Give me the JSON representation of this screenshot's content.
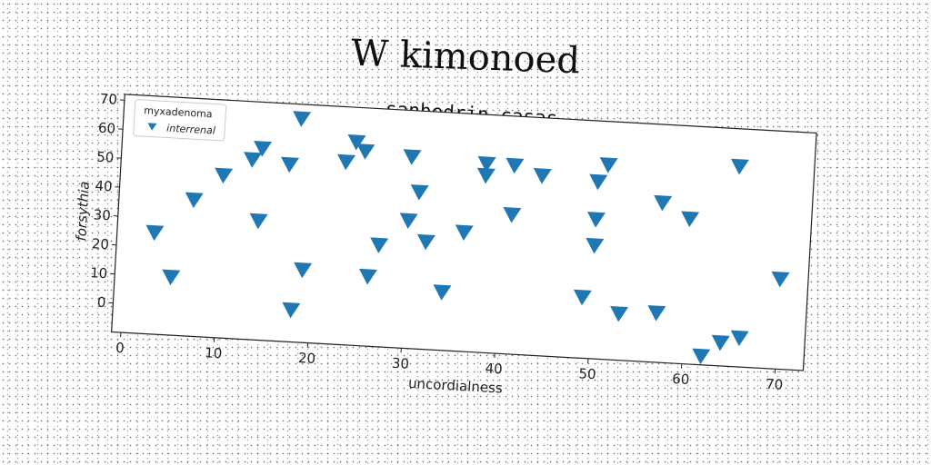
{
  "figure": {
    "title": "W kimonoed"
  },
  "chart_data": {
    "type": "scatter",
    "title": "sanhedrin casas",
    "xlabel": "uncordialness",
    "ylabel": "forsythia",
    "xlim": [
      -1,
      73
    ],
    "ylim": [
      -10,
      72
    ],
    "xticks": [
      0,
      10,
      20,
      30,
      40,
      50,
      60,
      70
    ],
    "yticks": [
      0,
      10,
      20,
      30,
      40,
      50,
      60,
      70
    ],
    "grid": false,
    "legend": {
      "title": "myxadenoma",
      "placement": "top-left"
    },
    "marker": "triangle-down",
    "color": "#1f77b4",
    "series": [
      {
        "name": "interrenal",
        "points": [
          [
            3,
            25
          ],
          [
            5,
            10
          ],
          [
            7,
            37
          ],
          [
            10,
            46
          ],
          [
            13,
            52
          ],
          [
            14,
            56
          ],
          [
            14,
            31
          ],
          [
            17,
            51
          ],
          [
            18,
            67
          ],
          [
            18,
            1
          ],
          [
            19,
            15
          ],
          [
            23,
            53
          ],
          [
            24,
            60
          ],
          [
            25,
            57
          ],
          [
            26,
            14
          ],
          [
            27,
            25
          ],
          [
            30,
            34
          ],
          [
            30,
            56
          ],
          [
            31,
            44
          ],
          [
            32,
            27
          ],
          [
            34,
            10
          ],
          [
            36,
            31
          ],
          [
            38,
            51
          ],
          [
            38,
            55
          ],
          [
            41,
            55
          ],
          [
            41,
            38
          ],
          [
            44,
            52
          ],
          [
            49,
            11
          ],
          [
            50,
            29
          ],
          [
            50,
            38
          ],
          [
            50,
            51
          ],
          [
            51,
            57
          ],
          [
            53,
            6
          ],
          [
            57,
            7
          ],
          [
            57,
            45
          ],
          [
            60,
            40
          ],
          [
            62,
            -7
          ],
          [
            64,
            -2
          ],
          [
            65,
            59
          ],
          [
            66,
            0
          ],
          [
            70,
            21
          ]
        ]
      }
    ]
  }
}
